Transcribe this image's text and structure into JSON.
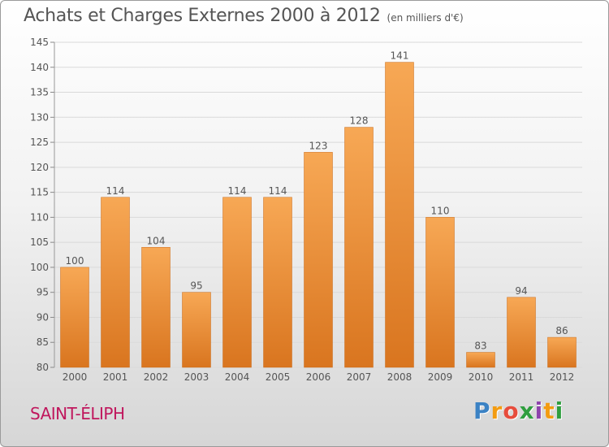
{
  "header": {
    "title": "Achats et Charges Externes 2000 à 2012",
    "subtitle": "(en milliers d'€)"
  },
  "commune_name": "SAINT-ÉLIPH",
  "logo": {
    "letters": [
      "P",
      "r",
      "o",
      "x",
      "i",
      "t",
      "i"
    ],
    "colors": [
      "#3b82c4",
      "#f39c12",
      "#e74c3c",
      "#2e9e3e",
      "#8e44ad",
      "#f39c12",
      "#2e9e3e"
    ]
  },
  "colors": {
    "bar_top": "#f7a855",
    "bar_bottom": "#d9751f",
    "grid": "#d9d9d9",
    "text": "#555555"
  },
  "chart_data": {
    "type": "bar",
    "categories": [
      "2000",
      "2001",
      "2002",
      "2003",
      "2004",
      "2005",
      "2006",
      "2007",
      "2008",
      "2009",
      "2010",
      "2011",
      "2012"
    ],
    "values": [
      100,
      114,
      104,
      95,
      114,
      114,
      123,
      128,
      141,
      110,
      83,
      94,
      86
    ],
    "data_labels": [
      "100",
      "114",
      "104",
      "95",
      "114",
      "114",
      "123",
      "128",
      "141",
      "110",
      "83",
      "94",
      "86"
    ],
    "ylim": [
      80,
      145
    ],
    "yticks": [
      80,
      85,
      90,
      95,
      100,
      105,
      110,
      115,
      120,
      125,
      130,
      135,
      140,
      145
    ],
    "grid": true
  }
}
